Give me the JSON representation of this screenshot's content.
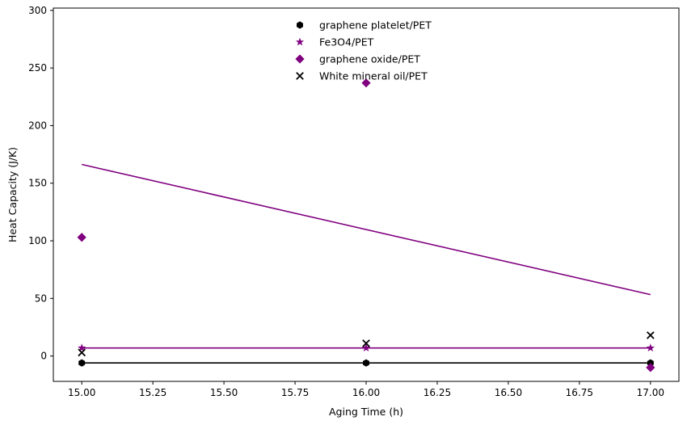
{
  "chart_data": {
    "type": "scatter",
    "title": "",
    "xlabel": "Aging Time (h)",
    "ylabel": "Heat Capacity (J/K)",
    "xlim": [
      14.9,
      17.1
    ],
    "ylim": [
      -22,
      302
    ],
    "xticks": [
      15.0,
      15.25,
      15.5,
      15.75,
      16.0,
      16.25,
      16.5,
      16.75,
      17.0
    ],
    "xtick_labels": [
      "15.00",
      "15.25",
      "15.50",
      "15.75",
      "16.00",
      "16.25",
      "16.50",
      "16.75",
      "17.00"
    ],
    "yticks": [
      0,
      50,
      100,
      150,
      200,
      250,
      300
    ],
    "ytick_labels": [
      "0",
      "50",
      "100",
      "150",
      "200",
      "250",
      "300"
    ],
    "grid": false,
    "legend_position": "top-center",
    "series": [
      {
        "name": "graphene platelet/PET",
        "marker": "hexagon",
        "color": "#000000",
        "x": [
          15,
          16,
          17
        ],
        "y": [
          -6,
          -6,
          -6
        ],
        "fit": {
          "x": [
            15,
            17
          ],
          "y": [
            -6,
            -6
          ],
          "color": "#000000"
        }
      },
      {
        "name": "Fe3O4/PET",
        "marker": "star",
        "color": "#800080",
        "x": [
          15,
          16,
          17
        ],
        "y": [
          7,
          7,
          7
        ],
        "fit": {
          "x": [
            15,
            17
          ],
          "y": [
            7,
            7
          ],
          "color": "#800080"
        }
      },
      {
        "name": "graphene oxide/PET",
        "marker": "diamond",
        "color": "#800080",
        "x": [
          15,
          16,
          17
        ],
        "y": [
          103,
          237,
          -10
        ],
        "fit": {
          "x": [
            15,
            17
          ],
          "y": [
            166.3,
            53.3
          ],
          "color": "#800080"
        }
      },
      {
        "name": "White mineral oil/PET",
        "marker": "x",
        "color": "#000000",
        "x": [
          15,
          16,
          17
        ],
        "y": [
          3,
          11,
          18
        ]
      }
    ]
  }
}
